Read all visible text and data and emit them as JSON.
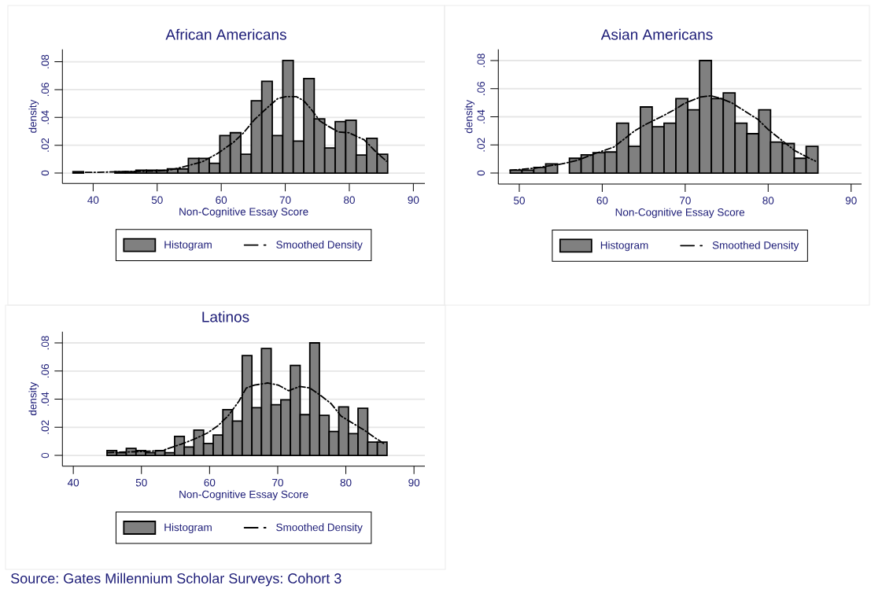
{
  "chart_data": [
    {
      "type": "histogram",
      "title": "African Americans",
      "xlabel": "Non-Cognitive Essay Score",
      "ylabel": "density",
      "xlim": [
        35.2,
        91.8
      ],
      "ylim": [
        -0.0075,
        0.089
      ],
      "xticks": [
        40,
        50,
        60,
        70,
        80,
        90
      ],
      "yticks": [
        0,
        {
          "value": 0.02,
          "label": ".02"
        },
        {
          "value": 0.04,
          "label": ".04"
        },
        {
          "value": 0.06,
          "label": ".06"
        },
        {
          "value": 0.08,
          "label": ".08"
        }
      ],
      "grid": "y",
      "legend": "bottom",
      "series": [
        {
          "name": "Histogram",
          "color": "#808080",
          "bins": [
            36.85,
            38.49,
            40.13,
            41.76,
            43.4,
            45.04,
            46.68,
            48.32,
            49.95,
            51.59,
            53.23,
            54.87,
            56.51,
            58.14,
            59.78,
            61.42,
            63.06,
            64.7,
            66.33,
            67.97,
            69.61,
            71.25,
            72.89,
            74.52,
            76.16,
            77.8,
            79.44,
            81.08,
            82.71,
            84.35,
            85.99
          ],
          "values": [
            0.001,
            0,
            0,
            0,
            0.001,
            0.001,
            0.002,
            0.002,
            0.002,
            0.003,
            0.003,
            0.0105,
            0.0105,
            0.007,
            0.027,
            0.029,
            0.0135,
            0.052,
            0.066,
            0.027,
            0.081,
            0.023,
            0.068,
            0.039,
            0.018,
            0.037,
            0.038,
            0.013,
            0.025,
            0.0135
          ]
        },
        {
          "name": "Smoothed Density",
          "type": "line",
          "color": "#000000",
          "line_style": "dashed",
          "x": [
            36.9,
            40,
            45,
            50,
            51.7,
            53.7,
            57,
            59.4,
            61.9,
            63.5,
            65.2,
            67.2,
            68.8,
            70.1,
            71.7,
            72.9,
            74.2,
            75.4,
            76.6,
            78.3,
            79.9,
            81.1,
            82.3,
            84,
            85.8
          ],
          "values": [
            0.0005,
            0.0005,
            0.001,
            0.0015,
            0.002,
            0.004,
            0.008,
            0.014,
            0.022,
            0.029,
            0.0385,
            0.047,
            0.0535,
            0.055,
            0.055,
            0.052,
            0.045,
            0.0375,
            0.034,
            0.0295,
            0.029,
            0.0265,
            0.024,
            0.016,
            0.0085
          ]
        }
      ]
    },
    {
      "type": "histogram",
      "title": "Asian Americans",
      "xlabel": "Non-Cognitive Essay Score",
      "ylabel": "density",
      "xlim": [
        47.47,
        91.26
      ],
      "ylim": [
        -0.0078,
        0.088
      ],
      "xticks": [
        50,
        60,
        70,
        80,
        90
      ],
      "yticks": [
        0,
        {
          "value": 0.02,
          "label": ".02"
        },
        {
          "value": 0.04,
          "label": ".04"
        },
        {
          "value": 0.06,
          "label": ".06"
        },
        {
          "value": 0.08,
          "label": ".08"
        }
      ],
      "grid": "y",
      "legend": "bottom",
      "series": [
        {
          "name": "Histogram",
          "color": "#808080",
          "bins": [
            48.9,
            50.33,
            51.75,
            53.18,
            54.61,
            56.04,
            57.46,
            58.89,
            60.32,
            61.74,
            63.17,
            64.6,
            66.02,
            67.45,
            68.88,
            70.31,
            71.73,
            73.16,
            74.59,
            76.01,
            77.44,
            78.87,
            80.29,
            81.72,
            83.15,
            84.58,
            86.0
          ],
          "values": [
            0.002,
            0.002,
            0.004,
            0.0065,
            0,
            0.0105,
            0.013,
            0.0145,
            0.015,
            0.0355,
            0.019,
            0.047,
            0.033,
            0.0355,
            0.053,
            0.045,
            0.08,
            0.053,
            0.057,
            0.0355,
            0.028,
            0.045,
            0.022,
            0.021,
            0.0105,
            0.019
          ]
        },
        {
          "name": "Smoothed Density",
          "type": "line",
          "color": "#000000",
          "line_style": "dashed",
          "x": [
            48.9,
            51.9,
            55.1,
            57,
            59.2,
            61.4,
            62.6,
            63.9,
            65.2,
            67.1,
            68.7,
            69.9,
            71.8,
            73.1,
            74.3,
            75.6,
            77.2,
            78.8,
            80,
            81.6,
            83.2,
            84.8,
            85.7
          ],
          "values": [
            0.002,
            0.0035,
            0.0065,
            0.009,
            0.014,
            0.0185,
            0.024,
            0.03,
            0.0345,
            0.04,
            0.045,
            0.0495,
            0.054,
            0.055,
            0.053,
            0.05,
            0.044,
            0.038,
            0.031,
            0.0235,
            0.016,
            0.011,
            0.0085
          ]
        }
      ]
    },
    {
      "type": "histogram",
      "title": "Latinos",
      "xlabel": "Non-Cognitive Essay Score",
      "ylabel": "density",
      "xlim": [
        38.4,
        91.6
      ],
      "ylim": [
        -0.0076,
        0.088
      ],
      "xticks": [
        40,
        50,
        60,
        70,
        80,
        90
      ],
      "yticks": [
        0,
        {
          "value": 0.02,
          "label": ".02"
        },
        {
          "value": 0.04,
          "label": ".04"
        },
        {
          "value": 0.06,
          "label": ".06"
        },
        {
          "value": 0.08,
          "label": ".08"
        }
      ],
      "grid": "y",
      "legend": "bottom",
      "annotations": [
        "Source: Gates Millennium Scholar Surveys: Cohort 3"
      ],
      "series": [
        {
          "name": "Histogram",
          "color": "#808080",
          "bins": [
            44.95,
            46.37,
            47.78,
            49.2,
            50.62,
            52.04,
            53.45,
            54.87,
            56.29,
            57.7,
            59.12,
            60.54,
            61.95,
            63.37,
            64.79,
            66.21,
            67.62,
            69.04,
            70.46,
            71.87,
            73.29,
            74.71,
            76.12,
            77.54,
            78.96,
            80.38,
            81.79,
            83.21,
            84.63,
            86.04
          ],
          "values": [
            0.0035,
            0.002,
            0.005,
            0.0035,
            0.002,
            0.0035,
            0.002,
            0.0135,
            0.006,
            0.018,
            0.0085,
            0.0145,
            0.0325,
            0.0245,
            0.071,
            0.034,
            0.076,
            0.036,
            0.0395,
            0.064,
            0.029,
            0.08,
            0.0285,
            0.017,
            0.0345,
            0.0155,
            0.0335,
            0.0095,
            0.0095
          ]
        },
        {
          "name": "Smoothed Density",
          "type": "line",
          "color": "#000000",
          "line_style": "dashed",
          "x": [
            45,
            48.1,
            51.2,
            53.1,
            55.8,
            57.7,
            59.7,
            61.2,
            62.7,
            64.3,
            65.4,
            66.6,
            68.5,
            70.1,
            71.6,
            73.2,
            74.7,
            76.2,
            77.8,
            79.3,
            80.8,
            82.7,
            84.3,
            85.7
          ],
          "values": [
            0.002,
            0.0025,
            0.003,
            0.0035,
            0.008,
            0.0115,
            0.016,
            0.021,
            0.028,
            0.0385,
            0.048,
            0.05,
            0.0515,
            0.05,
            0.046,
            0.049,
            0.048,
            0.043,
            0.037,
            0.028,
            0.0235,
            0.018,
            0.0125,
            0.008
          ]
        }
      ]
    }
  ]
}
